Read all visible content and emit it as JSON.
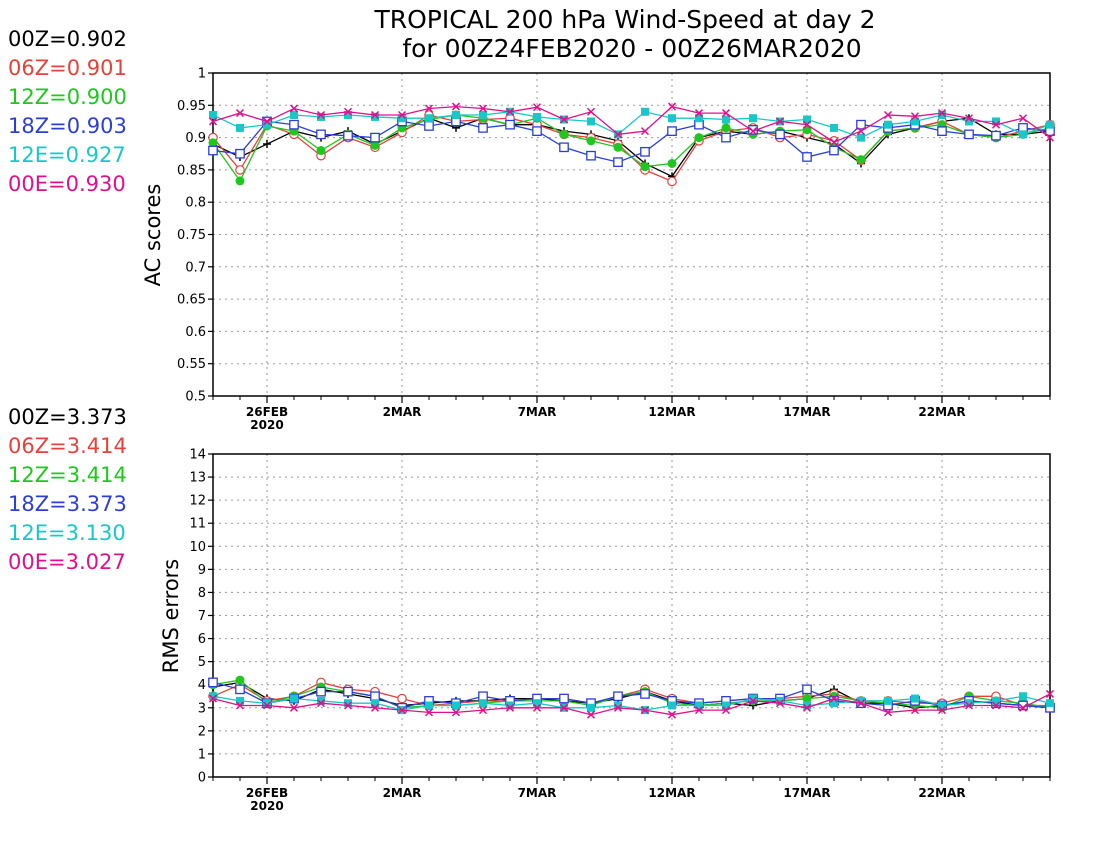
{
  "title_line1": "TROPICAL 200 hPa Wind-Speed at day 2",
  "title_line2": "for 00Z24FEB2020 - 00Z26MAR2020",
  "series_colors": {
    "00Z": "#000000",
    "06Z": "#e8403a",
    "12Z": "#1ec81e",
    "18Z": "#2b3fd8",
    "12E": "#18c8c8",
    "00E": "#e0108c"
  },
  "legend_top": [
    "00Z=0.902",
    "06Z=0.901",
    "12Z=0.900",
    "18Z=0.903",
    "12E=0.927",
    "00E=0.930"
  ],
  "legend_bottom": [
    "00Z=3.373",
    "06Z=3.414",
    "12Z=3.414",
    "18Z=3.373",
    "12E=3.130",
    "00E=3.027"
  ],
  "chart_data": [
    {
      "type": "line",
      "ylabel": "AC scores",
      "ylim": [
        0.5,
        1.0
      ],
      "yticks": [
        "0.5",
        "0.55",
        "0.6",
        "0.65",
        "0.7",
        "0.75",
        "0.8",
        "0.85",
        "0.9",
        "0.95",
        "1"
      ],
      "xlim": [
        24,
        55
      ],
      "xticks": [
        {
          "label": "26FEB",
          "sub": "2020",
          "x": 26
        },
        {
          "label": "2MAR",
          "sub": "",
          "x": 31
        },
        {
          "label": "7MAR",
          "sub": "",
          "x": 36
        },
        {
          "label": "12MAR",
          "sub": "",
          "x": 41
        },
        {
          "label": "17MAR",
          "sub": "",
          "x": 46
        },
        {
          "label": "22MAR",
          "sub": "",
          "x": 51
        }
      ],
      "grid": true,
      "x": [
        24,
        25,
        26,
        27,
        28,
        29,
        30,
        31,
        32,
        33,
        34,
        35,
        36,
        37,
        38,
        39,
        40,
        41,
        42,
        43,
        44,
        45,
        46,
        47,
        48,
        49,
        50,
        51,
        52,
        53,
        54,
        55
      ],
      "series": [
        {
          "name": "00Z",
          "marker": "plus",
          "values": [
            0.89,
            0.87,
            0.89,
            0.91,
            0.9,
            0.91,
            0.89,
            0.91,
            0.93,
            0.915,
            0.93,
            0.92,
            0.92,
            0.91,
            0.905,
            0.895,
            0.86,
            0.84,
            0.9,
            0.91,
            0.905,
            0.91,
            0.9,
            0.89,
            0.86,
            0.905,
            0.915,
            0.925,
            0.93,
            0.905,
            0.905,
            0.91
          ]
        },
        {
          "name": "06Z",
          "marker": "circle",
          "values": [
            0.9,
            0.85,
            0.92,
            0.905,
            0.872,
            0.9,
            0.885,
            0.908,
            0.935,
            0.925,
            0.928,
            0.93,
            0.92,
            0.905,
            0.9,
            0.89,
            0.85,
            0.832,
            0.895,
            0.91,
            0.915,
            0.9,
            0.905,
            0.895,
            0.865,
            0.91,
            0.915,
            0.925,
            0.905,
            0.9,
            0.91,
            0.92
          ]
        },
        {
          "name": "12Z",
          "marker": "dot",
          "values": [
            0.892,
            0.833,
            0.918,
            0.91,
            0.88,
            0.905,
            0.888,
            0.915,
            0.928,
            0.935,
            0.93,
            0.92,
            0.93,
            0.905,
            0.895,
            0.885,
            0.855,
            0.86,
            0.9,
            0.915,
            0.905,
            0.91,
            0.912,
            0.885,
            0.866,
            0.91,
            0.915,
            0.92,
            0.905,
            0.9,
            0.905,
            0.915
          ]
        },
        {
          "name": "18Z",
          "marker": "square",
          "values": [
            0.88,
            0.875,
            0.925,
            0.92,
            0.905,
            0.903,
            0.9,
            0.925,
            0.918,
            0.925,
            0.915,
            0.92,
            0.91,
            0.885,
            0.872,
            0.862,
            0.878,
            0.91,
            0.92,
            0.9,
            0.912,
            0.905,
            0.87,
            0.88,
            0.92,
            0.915,
            0.92,
            0.91,
            0.905,
            0.903,
            0.915,
            0.91
          ]
        },
        {
          "name": "12E",
          "marker": "fsquare",
          "values": [
            0.935,
            0.915,
            0.92,
            0.935,
            0.932,
            0.935,
            0.932,
            0.93,
            0.93,
            0.935,
            0.935,
            0.94,
            0.932,
            0.928,
            0.925,
            0.905,
            0.94,
            0.93,
            0.93,
            0.928,
            0.93,
            0.925,
            0.928,
            0.915,
            0.9,
            0.92,
            0.925,
            0.935,
            0.925,
            0.925,
            0.905,
            0.92
          ]
        },
        {
          "name": "00E",
          "marker": "cross",
          "values": [
            0.925,
            0.938,
            0.925,
            0.945,
            0.935,
            0.94,
            0.935,
            0.935,
            0.945,
            0.948,
            0.945,
            0.94,
            0.947,
            0.928,
            0.94,
            0.905,
            0.91,
            0.948,
            0.938,
            0.938,
            0.91,
            0.925,
            0.92,
            0.893,
            0.91,
            0.935,
            0.933,
            0.938,
            0.93,
            0.92,
            0.93,
            0.9
          ]
        }
      ]
    },
    {
      "type": "line",
      "ylabel": "RMS errors",
      "ylim": [
        0,
        14
      ],
      "yticks": [
        "0",
        "1",
        "2",
        "3",
        "4",
        "5",
        "6",
        "7",
        "8",
        "9",
        "10",
        "11",
        "12",
        "13",
        "14"
      ],
      "xlim": [
        24,
        55
      ],
      "xticks": [
        {
          "label": "26FEB",
          "sub": "2020",
          "x": 26
        },
        {
          "label": "2MAR",
          "sub": "",
          "x": 31
        },
        {
          "label": "7MAR",
          "sub": "",
          "x": 36
        },
        {
          "label": "12MAR",
          "sub": "",
          "x": 41
        },
        {
          "label": "17MAR",
          "sub": "",
          "x": 46
        },
        {
          "label": "22MAR",
          "sub": "",
          "x": 51
        }
      ],
      "grid": true,
      "x": [
        24,
        25,
        26,
        27,
        28,
        29,
        30,
        31,
        32,
        33,
        34,
        35,
        36,
        37,
        38,
        39,
        40,
        41,
        42,
        43,
        44,
        45,
        46,
        47,
        48,
        49,
        50,
        51,
        52,
        53,
        54,
        55
      ],
      "series": [
        {
          "name": "00Z",
          "marker": "plus",
          "values": [
            3.9,
            4.1,
            3.4,
            3.3,
            3.8,
            3.6,
            3.4,
            3.1,
            3.2,
            3.3,
            3.3,
            3.4,
            3.4,
            3.3,
            3.2,
            3.4,
            3.7,
            3.3,
            3.1,
            3.2,
            3.1,
            3.3,
            3.4,
            3.8,
            3.2,
            3.2,
            3.0,
            3.1,
            3.3,
            3.2,
            3.1,
            3.0
          ]
        },
        {
          "name": "06Z",
          "marker": "circle",
          "values": [
            3.5,
            4.0,
            3.3,
            3.5,
            4.1,
            3.8,
            3.7,
            3.4,
            3.1,
            3.2,
            3.3,
            3.3,
            3.4,
            3.4,
            3.2,
            3.5,
            3.8,
            3.4,
            3.2,
            3.3,
            3.4,
            3.4,
            3.5,
            3.6,
            3.3,
            3.3,
            3.2,
            3.2,
            3.5,
            3.5,
            3.1,
            3.1
          ]
        },
        {
          "name": "12Z",
          "marker": "dot",
          "values": [
            4.0,
            4.2,
            3.2,
            3.5,
            3.9,
            3.7,
            3.5,
            3.0,
            3.1,
            3.1,
            3.2,
            3.3,
            3.3,
            3.3,
            3.1,
            3.5,
            3.7,
            3.2,
            3.1,
            3.2,
            3.3,
            3.3,
            3.4,
            3.5,
            3.3,
            3.2,
            3.1,
            3.0,
            3.5,
            3.3,
            3.2,
            3.0
          ]
        },
        {
          "name": "18Z",
          "marker": "square",
          "values": [
            4.1,
            3.8,
            3.2,
            3.4,
            3.7,
            3.7,
            3.5,
            3.0,
            3.3,
            3.2,
            3.5,
            3.3,
            3.4,
            3.4,
            3.2,
            3.5,
            3.6,
            3.3,
            3.2,
            3.3,
            3.4,
            3.4,
            3.8,
            3.3,
            3.2,
            3.1,
            3.3,
            3.1,
            3.3,
            3.2,
            3.1,
            3.0
          ]
        },
        {
          "name": "12E",
          "marker": "fsquare",
          "values": [
            3.5,
            3.3,
            3.2,
            3.4,
            3.3,
            3.2,
            3.2,
            2.9,
            3.1,
            3.1,
            3.2,
            3.1,
            3.2,
            3.0,
            3.0,
            3.1,
            2.9,
            3.1,
            3.1,
            3.1,
            3.4,
            3.3,
            3.1,
            3.2,
            3.3,
            3.3,
            3.4,
            3.1,
            3.2,
            3.3,
            3.5,
            3.2
          ]
        },
        {
          "name": "00E",
          "marker": "cross",
          "values": [
            3.4,
            3.1,
            3.1,
            3.0,
            3.2,
            3.1,
            3.0,
            2.9,
            2.8,
            2.8,
            2.9,
            3.0,
            3.0,
            3.0,
            2.7,
            3.0,
            2.9,
            2.7,
            2.9,
            2.9,
            3.3,
            3.2,
            3.0,
            3.4,
            3.2,
            2.8,
            2.9,
            2.9,
            3.1,
            3.1,
            3.0,
            3.6
          ]
        }
      ]
    }
  ]
}
